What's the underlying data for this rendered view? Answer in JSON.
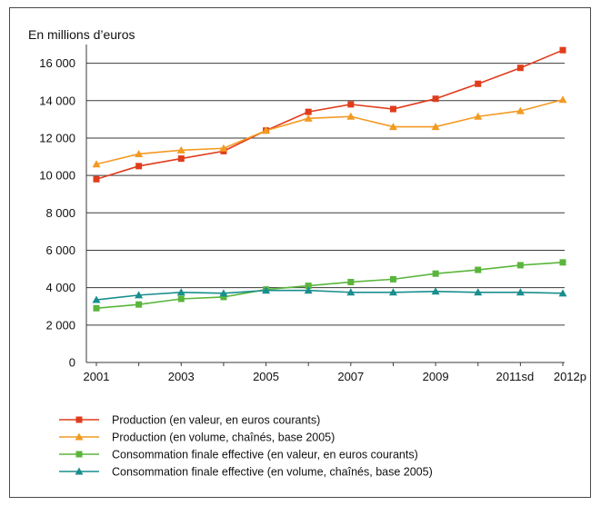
{
  "chart_data": {
    "type": "line",
    "ylabel": "En millions d’euros",
    "ylim": [
      0,
      17000
    ],
    "y_ticks": [
      0,
      2000,
      4000,
      6000,
      8000,
      10000,
      12000,
      14000,
      16000
    ],
    "y_tick_labels": [
      "0",
      "2 000",
      "4 000",
      "6 000",
      "8 000",
      "10 000",
      "12 000",
      "14 000",
      "16 000"
    ],
    "x": [
      "2001",
      "2002",
      "2003",
      "2004",
      "2005",
      "2006",
      "2007",
      "2008",
      "2009",
      "2010",
      "2011sd",
      "2012p"
    ],
    "x_tick_labels": [
      "2001",
      "",
      "2003",
      "",
      "2005",
      "",
      "2007",
      "",
      "2009",
      "",
      "2011sd",
      "2012p"
    ],
    "grid": true,
    "legend_position": "bottom",
    "series": [
      {
        "name": "Production (en valeur, en euros courants)",
        "color": "#e03c1c",
        "marker": "square",
        "values": [
          9800,
          10500,
          10900,
          11300,
          12400,
          13400,
          13800,
          13550,
          14100,
          14900,
          15750,
          16700
        ]
      },
      {
        "name": "Production (en volume, chaînés, base 2005)",
        "color": "#f39a22",
        "marker": "triangle",
        "values": [
          10600,
          11150,
          11350,
          11450,
          12400,
          13050,
          13150,
          12600,
          12600,
          13150,
          13450,
          14050
        ]
      },
      {
        "name": "Consommation finale effective (en valeur, en euros courants)",
        "color": "#5ab53c",
        "marker": "square",
        "values": [
          2900,
          3100,
          3400,
          3500,
          3900,
          4100,
          4300,
          4450,
          4750,
          4950,
          5200,
          5350
        ]
      },
      {
        "name": "Consommation finale effective (en volume, chaînés, base 2005)",
        "color": "#1a8e8e",
        "marker": "triangle",
        "values": [
          3350,
          3600,
          3750,
          3700,
          3850,
          3850,
          3750,
          3750,
          3800,
          3750,
          3750,
          3700
        ]
      }
    ]
  }
}
